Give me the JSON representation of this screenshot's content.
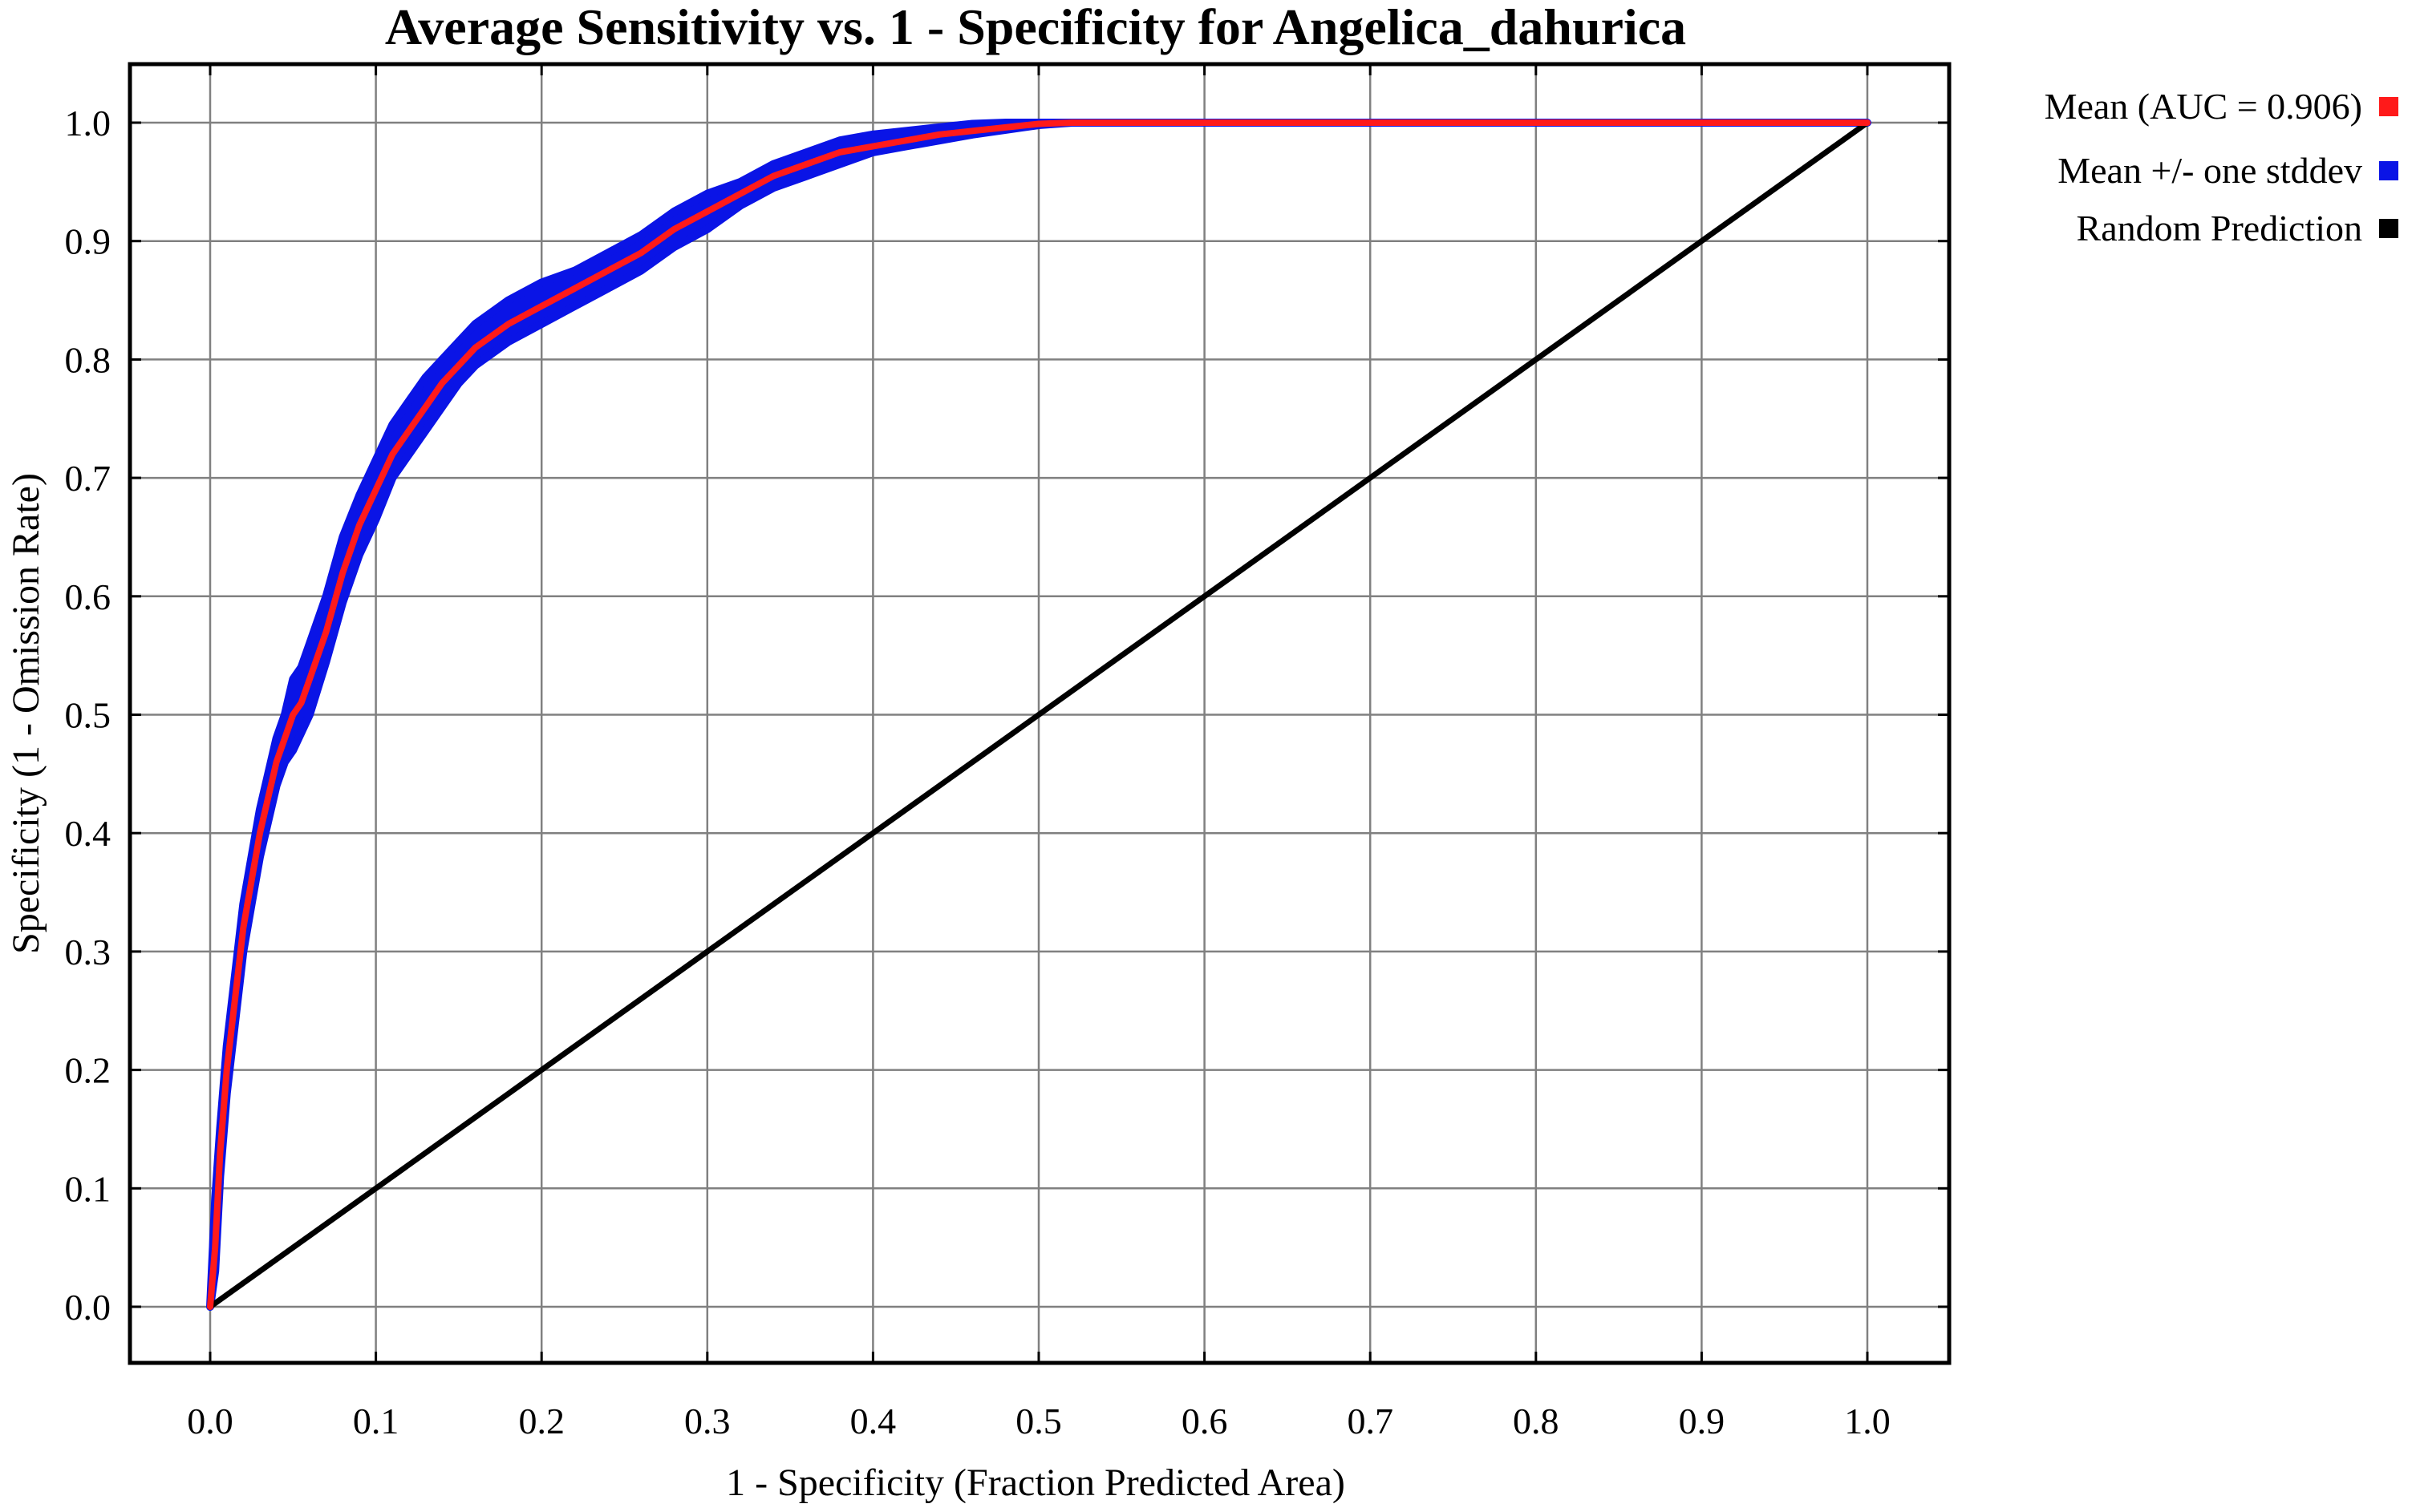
{
  "chart_data": {
    "type": "line",
    "title": "Average Sensitivity vs. 1 - Specificity for Angelica_dahurica",
    "xlabel": "1 - Specificity (Fraction Predicted Area)",
    "ylabel": "Specificity (1 - Omission Rate)",
    "xlim": [
      0.0,
      1.0
    ],
    "ylim": [
      0.0,
      1.0
    ],
    "x_ticks": [
      "0.0",
      "0.1",
      "0.2",
      "0.3",
      "0.4",
      "0.5",
      "0.6",
      "0.7",
      "0.8",
      "0.9",
      "1.0"
    ],
    "y_ticks": [
      "0.0",
      "0.1",
      "0.2",
      "0.3",
      "0.4",
      "0.5",
      "0.6",
      "0.7",
      "0.8",
      "0.9",
      "1.0"
    ],
    "grid": true,
    "legend_position": "right, outside plot",
    "colors": {
      "mean": "#ff1a1a",
      "stddev": "#0a14e6",
      "random": "#000000",
      "grid": "#808080"
    },
    "series": [
      {
        "name": "Mean (AUC = 0.906)",
        "role": "mean",
        "x": [
          0.0,
          0.003,
          0.006,
          0.01,
          0.015,
          0.02,
          0.025,
          0.03,
          0.035,
          0.04,
          0.045,
          0.05,
          0.055,
          0.06,
          0.07,
          0.08,
          0.09,
          0.1,
          0.11,
          0.12,
          0.13,
          0.14,
          0.15,
          0.16,
          0.18,
          0.2,
          0.22,
          0.24,
          0.26,
          0.28,
          0.3,
          0.32,
          0.34,
          0.36,
          0.38,
          0.4,
          0.42,
          0.44,
          0.46,
          0.48,
          0.5,
          0.52,
          0.55,
          0.6,
          0.7,
          0.8,
          0.9,
          1.0
        ],
        "y": [
          0.0,
          0.05,
          0.13,
          0.2,
          0.26,
          0.32,
          0.36,
          0.4,
          0.43,
          0.46,
          0.48,
          0.5,
          0.51,
          0.53,
          0.57,
          0.62,
          0.66,
          0.69,
          0.72,
          0.74,
          0.76,
          0.78,
          0.795,
          0.81,
          0.83,
          0.845,
          0.86,
          0.875,
          0.89,
          0.91,
          0.925,
          0.94,
          0.955,
          0.965,
          0.975,
          0.98,
          0.985,
          0.99,
          0.993,
          0.996,
          0.999,
          1.0,
          1.0,
          1.0,
          1.0,
          1.0,
          1.0,
          1.0
        ]
      },
      {
        "name": "Mean +/- one stddev",
        "role": "stddev",
        "x": [
          0.0,
          0.003,
          0.006,
          0.01,
          0.015,
          0.02,
          0.025,
          0.03,
          0.035,
          0.04,
          0.045,
          0.05,
          0.055,
          0.06,
          0.07,
          0.08,
          0.09,
          0.1,
          0.11,
          0.12,
          0.13,
          0.14,
          0.15,
          0.16,
          0.18,
          0.2,
          0.22,
          0.24,
          0.26,
          0.28,
          0.3,
          0.32,
          0.34,
          0.36,
          0.38,
          0.4,
          0.42,
          0.44,
          0.46,
          0.48,
          0.5,
          0.52,
          0.55,
          0.6,
          0.7,
          0.8,
          0.9,
          1.0
        ],
        "y_lower": [
          0.0,
          0.03,
          0.11,
          0.18,
          0.24,
          0.3,
          0.34,
          0.38,
          0.41,
          0.44,
          0.46,
          0.47,
          0.485,
          0.5,
          0.545,
          0.595,
          0.635,
          0.665,
          0.7,
          0.72,
          0.74,
          0.76,
          0.78,
          0.795,
          0.815,
          0.83,
          0.845,
          0.86,
          0.875,
          0.895,
          0.91,
          0.93,
          0.945,
          0.955,
          0.965,
          0.975,
          0.98,
          0.985,
          0.99,
          0.994,
          0.998,
          1.0,
          1.0,
          1.0,
          1.0,
          1.0,
          1.0,
          1.0
        ],
        "y_upper": [
          0.0,
          0.09,
          0.15,
          0.22,
          0.28,
          0.34,
          0.38,
          0.42,
          0.45,
          0.48,
          0.5,
          0.53,
          0.54,
          0.56,
          0.6,
          0.65,
          0.685,
          0.715,
          0.745,
          0.765,
          0.785,
          0.8,
          0.815,
          0.83,
          0.85,
          0.865,
          0.875,
          0.89,
          0.905,
          0.925,
          0.94,
          0.95,
          0.965,
          0.975,
          0.985,
          0.99,
          0.993,
          0.996,
          0.999,
          1.0,
          1.0,
          1.0,
          1.0,
          1.0,
          1.0,
          1.0,
          1.0,
          1.0
        ]
      },
      {
        "name": "Random Prediction",
        "role": "random",
        "x": [
          0.0,
          1.0
        ],
        "y": [
          0.0,
          1.0
        ]
      }
    ]
  }
}
